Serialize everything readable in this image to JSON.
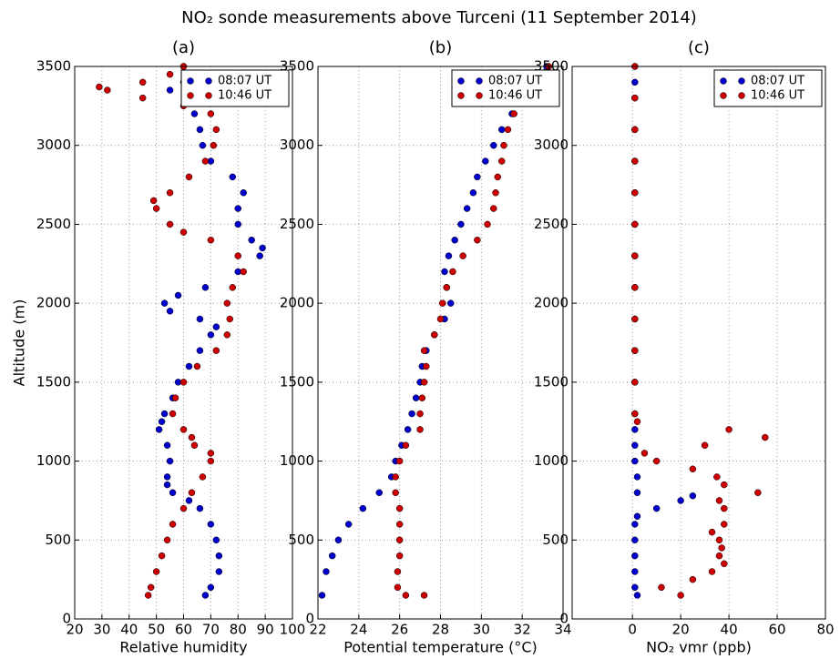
{
  "title": "NO₂ sonde measurements above Turceni (11 September 2014)",
  "chart_data": [
    {
      "type": "scatter",
      "title": "(a)",
      "xlabel": "Relative humidity",
      "ylabel": "Altitude (m)",
      "xlim": [
        20,
        100
      ],
      "xticks": [
        20,
        30,
        40,
        50,
        60,
        70,
        80,
        90,
        100
      ],
      "ylim": [
        0,
        3500
      ],
      "yticks": [
        0,
        500,
        1000,
        1500,
        2000,
        2500,
        3000,
        3500
      ],
      "grid": true,
      "legend": "upper right",
      "series": [
        {
          "name": "08:07 UT",
          "color": "#0000cc",
          "x": [
            68,
            70,
            73,
            73,
            72,
            70,
            66,
            62,
            56,
            54,
            54,
            55,
            54,
            51,
            52,
            53,
            56,
            58,
            62,
            66,
            70,
            72,
            66,
            55,
            53,
            58,
            68,
            80,
            88,
            89,
            85,
            80,
            80,
            82,
            78,
            70,
            67,
            66,
            64,
            55,
            62,
            60,
            60
          ],
          "values": [
            150,
            200,
            300,
            400,
            500,
            600,
            700,
            750,
            800,
            850,
            900,
            1000,
            1100,
            1200,
            1250,
            1300,
            1400,
            1500,
            1600,
            1700,
            1800,
            1850,
            1900,
            1950,
            2000,
            2050,
            2100,
            2200,
            2300,
            2350,
            2400,
            2500,
            2600,
            2700,
            2800,
            2900,
            3000,
            3100,
            3200,
            3350,
            3300,
            3400,
            3500
          ]
        },
        {
          "name": "10:46 UT",
          "color": "#cc0000",
          "x": [
            47,
            48,
            50,
            52,
            54,
            56,
            60,
            63,
            67,
            70,
            70,
            64,
            63,
            60,
            56,
            57,
            60,
            65,
            72,
            76,
            77,
            76,
            78,
            82,
            80,
            70,
            60,
            55,
            50,
            49,
            55,
            62,
            68,
            71,
            72,
            70,
            60,
            45,
            32,
            29,
            45,
            55,
            60
          ],
          "values": [
            150,
            200,
            300,
            400,
            500,
            600,
            700,
            800,
            900,
            1000,
            1050,
            1100,
            1150,
            1200,
            1300,
            1400,
            1500,
            1600,
            1700,
            1800,
            1900,
            2000,
            2100,
            2200,
            2300,
            2400,
            2450,
            2500,
            2600,
            2650,
            2700,
            2800,
            2900,
            3000,
            3100,
            3200,
            3250,
            3300,
            3350,
            3370,
            3400,
            3450,
            3500
          ]
        }
      ]
    },
    {
      "type": "scatter",
      "title": "(b)",
      "xlabel": "Potential temperature (°C)",
      "xlim": [
        22,
        34
      ],
      "xticks": [
        22,
        24,
        26,
        28,
        30,
        32,
        34
      ],
      "ylim": [
        0,
        3500
      ],
      "yticks": [
        0,
        500,
        1000,
        1500,
        2000,
        2500,
        3000,
        3500
      ],
      "grid": true,
      "legend": "upper right",
      "series": [
        {
          "name": "08:07 UT",
          "color": "#0000cc",
          "x": [
            22.2,
            22.4,
            22.7,
            23.0,
            23.5,
            24.2,
            25.0,
            25.6,
            25.8,
            26.1,
            26.4,
            26.6,
            26.8,
            27.0,
            27.1,
            27.3,
            27.7,
            28.2,
            28.5,
            28.3,
            28.2,
            28.4,
            28.7,
            29.0,
            29.3,
            29.6,
            29.8,
            30.2,
            30.6,
            31.0,
            31.5,
            32.2,
            32.8,
            33.2
          ],
          "values": [
            150,
            300,
            400,
            500,
            600,
            700,
            800,
            900,
            1000,
            1100,
            1200,
            1300,
            1400,
            1500,
            1600,
            1700,
            1800,
            1900,
            2000,
            2100,
            2200,
            2300,
            2400,
            2500,
            2600,
            2700,
            2800,
            2900,
            3000,
            3100,
            3200,
            3300,
            3400,
            3500
          ]
        },
        {
          "name": "10:46 UT",
          "color": "#cc0000",
          "x": [
            26.3,
            27.2,
            25.9,
            25.9,
            26.0,
            26.0,
            26.0,
            26.0,
            25.8,
            25.8,
            26.0,
            26.3,
            27.0,
            27.0,
            27.1,
            27.2,
            27.3,
            27.2,
            27.7,
            28.0,
            28.1,
            28.3,
            28.6,
            29.1,
            29.8,
            30.3,
            30.6,
            30.7,
            30.8,
            31.0,
            31.1,
            31.3,
            31.6,
            32.3,
            32.8,
            33.3
          ],
          "values": [
            150,
            150,
            200,
            300,
            400,
            500,
            600,
            700,
            800,
            900,
            1000,
            1100,
            1200,
            1300,
            1400,
            1500,
            1600,
            1700,
            1800,
            1900,
            2000,
            2100,
            2200,
            2300,
            2400,
            2500,
            2600,
            2700,
            2800,
            2900,
            3000,
            3100,
            3200,
            3300,
            3400,
            3500
          ]
        }
      ]
    },
    {
      "type": "scatter",
      "title": "(c)",
      "xlabel": "NO₂ vmr (ppb)",
      "xlim": [
        -25,
        80
      ],
      "xticks": [
        0,
        20,
        40,
        60,
        80
      ],
      "ylim": [
        0,
        3500
      ],
      "yticks": [
        0,
        500,
        1000,
        1500,
        2000,
        2500,
        3000,
        3500
      ],
      "grid": true,
      "legend": "upper right",
      "series": [
        {
          "name": "08:07 UT",
          "color": "#0000cc",
          "x": [
            2,
            1,
            1,
            1,
            1,
            1,
            2,
            10,
            20,
            25,
            2,
            2,
            1,
            1,
            1,
            1,
            1,
            1,
            1,
            1,
            1,
            1,
            1,
            1,
            1,
            1,
            1,
            1
          ],
          "values": [
            150,
            200,
            300,
            400,
            500,
            600,
            650,
            700,
            750,
            780,
            800,
            900,
            1000,
            1100,
            1200,
            1300,
            1500,
            1700,
            1900,
            2100,
            2300,
            2500,
            2700,
            2900,
            3100,
            3300,
            3400,
            3500
          ]
        },
        {
          "name": "10:46 UT",
          "color": "#cc0000",
          "x": [
            20,
            12,
            25,
            33,
            38,
            36,
            37,
            36,
            33,
            38,
            38,
            36,
            52,
            38,
            35,
            25,
            10,
            5,
            30,
            55,
            40,
            2,
            1,
            1,
            1,
            1,
            1,
            1,
            1,
            1,
            1,
            1,
            1,
            1
          ],
          "values": [
            150,
            200,
            250,
            300,
            350,
            400,
            450,
            500,
            550,
            600,
            700,
            750,
            800,
            850,
            900,
            950,
            1000,
            1050,
            1100,
            1150,
            1200,
            1250,
            1300,
            1500,
            1700,
            1900,
            2100,
            2300,
            2500,
            2700,
            2900,
            3100,
            3300,
            3500
          ]
        }
      ]
    }
  ]
}
